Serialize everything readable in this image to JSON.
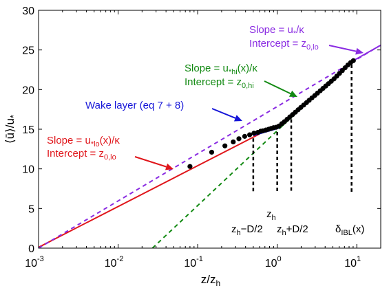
{
  "chart_data": {
    "type": "line",
    "xscale": "log",
    "xlim": [
      0.001,
      20
    ],
    "ylim": [
      0,
      30
    ],
    "xlabel": "z/z_h",
    "ylabel": "⟨ū⟩/u*",
    "xticks": [
      {
        "value": 0.001,
        "base": "10",
        "exp": "-3"
      },
      {
        "value": 0.01,
        "base": "10",
        "exp": "-2"
      },
      {
        "value": 0.1,
        "base": "10",
        "exp": "-1"
      },
      {
        "value": 1,
        "base": "10",
        "exp": "0"
      },
      {
        "value": 10,
        "base": "10",
        "exp": "1"
      }
    ],
    "yticks": [
      {
        "value": 0,
        "label": "0"
      },
      {
        "value": 5,
        "label": "5"
      },
      {
        "value": 10,
        "label": "10"
      },
      {
        "value": 15,
        "label": "15"
      },
      {
        "value": 20,
        "label": "20"
      },
      {
        "value": 25,
        "label": "25"
      },
      {
        "value": 30,
        "label": "30"
      }
    ],
    "colors": {
      "lo": "#e0161b",
      "purple": "#8a2be2",
      "green": "#138a13",
      "wake": "#1515d8",
      "points": "#000000"
    },
    "series": [
      {
        "key": "lo_fit",
        "style": "solid",
        "color": "#e0161b",
        "x": [
          0.001,
          0.6
        ],
        "y": [
          0.1,
          14.4
        ]
      },
      {
        "key": "wake_fit",
        "style": "solid",
        "color": "#1515d8",
        "x": [
          0.5,
          0.8,
          1.1
        ],
        "y": [
          14.2,
          14.8,
          15.2
        ]
      },
      {
        "key": "hi_fit",
        "style": "solid",
        "color": "#138a13",
        "x": [
          1.1,
          8.5
        ],
        "y": [
          15.2,
          23.5
        ]
      },
      {
        "key": "purple_tail",
        "style": "solid",
        "color": "#8a2be2",
        "x": [
          8.5,
          20
        ],
        "y": [
          23.5,
          25.6
        ]
      },
      {
        "key": "purple_dash",
        "style": "dashed",
        "color": "#8a2be2",
        "x": [
          0.001,
          20
        ],
        "y": [
          0,
          25.6
        ]
      },
      {
        "key": "green_dash",
        "style": "dashed",
        "color": "#138a13",
        "x": [
          0.027,
          1.1
        ],
        "y": [
          0,
          15.2
        ]
      }
    ],
    "points": {
      "x": [
        0.08,
        0.15,
        0.22,
        0.28,
        0.33,
        0.39,
        0.45,
        0.51,
        0.57,
        0.62,
        0.66,
        0.72,
        0.78,
        0.84,
        0.9,
        0.97,
        1.05,
        1.14,
        1.23,
        1.33,
        1.44,
        1.56,
        1.69,
        1.83,
        1.98,
        2.15,
        2.33,
        2.52,
        2.73,
        2.96,
        3.2,
        3.47,
        3.76,
        4.07,
        4.41,
        4.78,
        5.18,
        5.61,
        6.07,
        6.58,
        7.13,
        7.72,
        8.36,
        9.06
      ],
      "y": [
        10.3,
        12.1,
        12.9,
        13.4,
        13.8,
        14.1,
        14.3,
        14.5,
        14.6,
        14.75,
        14.8,
        14.9,
        15.0,
        15.1,
        15.2,
        15.25,
        15.4,
        15.7,
        15.95,
        16.25,
        16.55,
        16.85,
        17.15,
        17.45,
        17.75,
        18.05,
        18.35,
        18.65,
        18.95,
        19.25,
        19.55,
        19.85,
        20.15,
        20.45,
        20.75,
        21.05,
        21.35,
        21.7,
        22.05,
        22.4,
        22.75,
        23.1,
        23.4,
        23.65
      ]
    },
    "vlines": [
      {
        "key": "zh_minus",
        "x": 0.5,
        "y": 14.2
      },
      {
        "key": "zh",
        "x": 1.0,
        "y": 15.0
      },
      {
        "key": "zh_plus",
        "x": 1.5,
        "y": 16.6
      },
      {
        "key": "dibl",
        "x": 8.6,
        "y": 23.5
      }
    ],
    "annotations": {
      "lo_slope": {
        "pre": "Slope = u",
        "sub": "*lo",
        "post": "(x)/κ",
        "color": "#e0161b"
      },
      "lo_intercept": {
        "pre": "Intercept = z",
        "sub": "0,lo",
        "color": "#e0161b"
      },
      "wake": {
        "text": "Wake layer (eq 7 + 8)",
        "color": "#1515d8"
      },
      "hi_slope": {
        "pre": "Slope = u",
        "sub": "*hi",
        "post": "(x)/κ",
        "color": "#138a13"
      },
      "hi_intercept": {
        "pre": "Intercept = z",
        "sub": "0,hi",
        "color": "#138a13"
      },
      "top_slope": {
        "pre": "Slope = u",
        "sub": "*",
        "post": "/κ",
        "color": "#8a2be2"
      },
      "top_intercept": {
        "pre": "Intercept = z",
        "sub": "0,lo",
        "color": "#8a2be2"
      },
      "zh": {
        "pre": "z",
        "sub": "h"
      },
      "zh_minus": {
        "pre": "z",
        "sub": "h",
        "post": "−D/2"
      },
      "zh_plus": {
        "pre": "z",
        "sub": "h",
        "post": "+D/2"
      },
      "dibl": {
        "pre": "δ",
        "sub": "IBL",
        "post": "(x)"
      }
    }
  }
}
